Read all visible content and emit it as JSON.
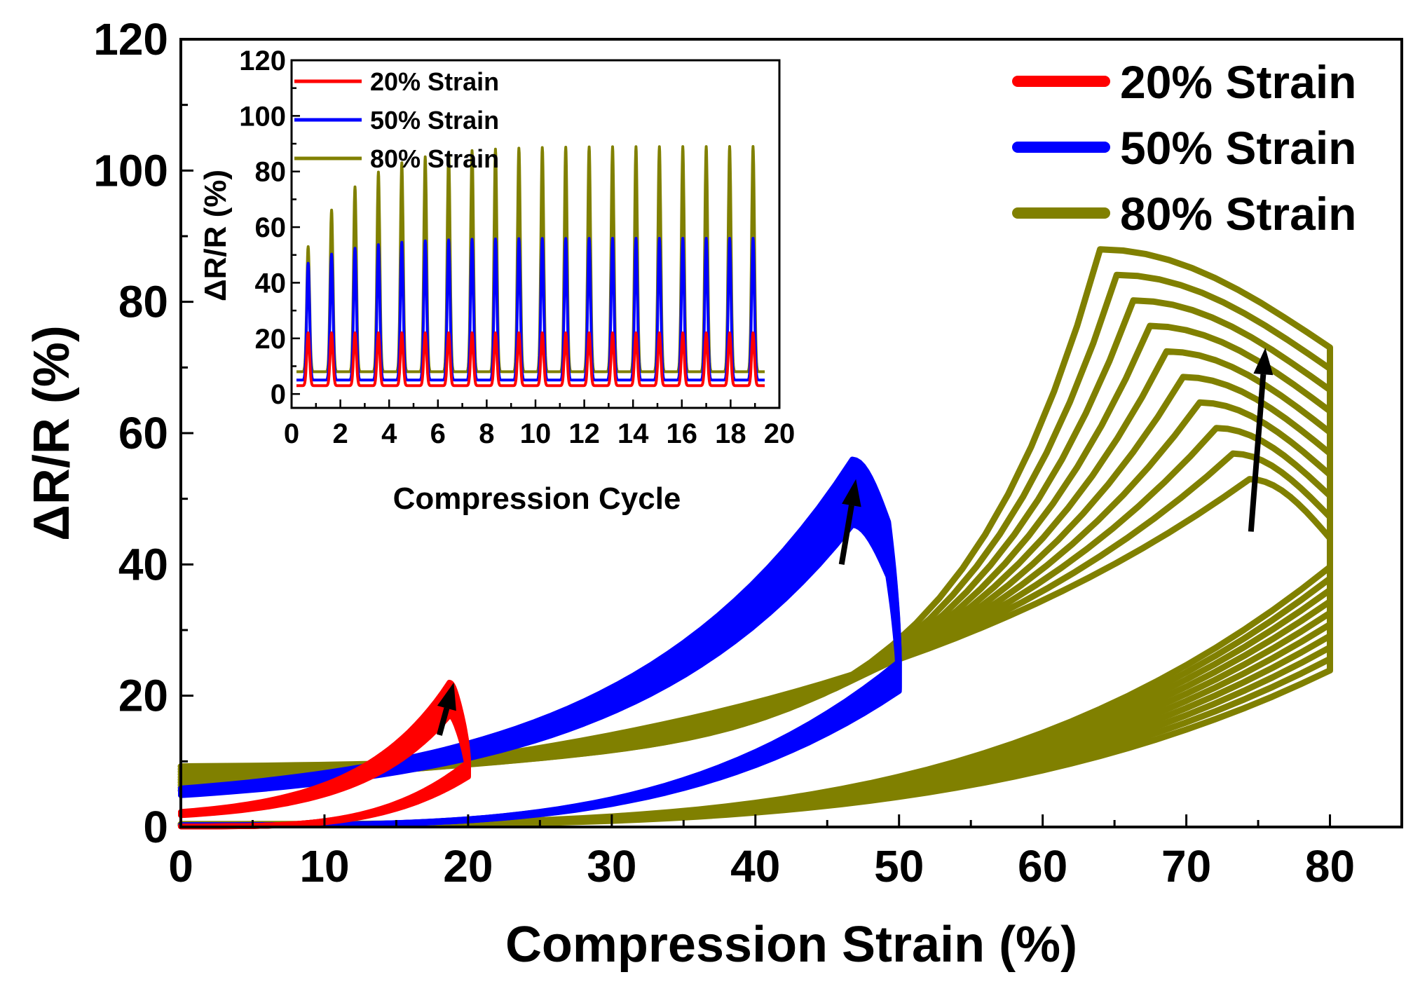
{
  "chart_data": [
    {
      "type": "line",
      "id": "main",
      "xlabel": "Compression Strain (%)",
      "ylabel": "ΔR/R (%)",
      "xlim": [
        0,
        85
      ],
      "ylim": [
        0,
        120
      ],
      "xticks": [
        0,
        10,
        20,
        30,
        40,
        50,
        60,
        70,
        80
      ],
      "yticks": [
        0,
        20,
        40,
        60,
        80,
        100,
        120
      ],
      "legend_position": "top-right",
      "legend": [
        {
          "label": "20% Strain",
          "color": "#ff0000"
        },
        {
          "label": "50% Strain",
          "color": "#0000ff"
        },
        {
          "label": "80% Strain",
          "color": "#808000"
        }
      ],
      "series": [
        {
          "name": "20% Strain",
          "color": "#ff0000",
          "max_strain": 20,
          "peak_start": 17,
          "peak_end": 22,
          "cycles": 20
        },
        {
          "name": "50% Strain",
          "color": "#0000ff",
          "max_strain": 50,
          "peak_start": 46,
          "peak_end": 56,
          "cycles": 20
        },
        {
          "name": "80% Strain",
          "color": "#808000",
          "max_strain": 80,
          "peak_start": 53,
          "peak_end": 88,
          "cycles": 10
        }
      ],
      "arrows": [
        {
          "x1": 18.0,
          "y1": 14.0,
          "x2": 19.0,
          "y2": 22.0
        },
        {
          "x1": 46.0,
          "y1": 40.0,
          "x2": 47.0,
          "y2": 53.0
        },
        {
          "x1": 74.5,
          "y1": 45.0,
          "x2": 75.5,
          "y2": 73.0
        }
      ]
    },
    {
      "type": "line",
      "id": "inset",
      "xlabel": "Compression Cycle",
      "ylabel": "ΔR/R (%)",
      "xlim": [
        0,
        20
      ],
      "ylim": [
        -5,
        120
      ],
      "xticks": [
        0,
        2,
        4,
        6,
        8,
        10,
        12,
        14,
        16,
        18,
        20
      ],
      "yticks": [
        0,
        20,
        40,
        60,
        80,
        100,
        120
      ],
      "legend_position": "top-left",
      "cycles": 20,
      "series": [
        {
          "name": "20% Strain",
          "color": "#ff0000",
          "baseline": 3,
          "peak_first": 22,
          "peak_last": 22
        },
        {
          "name": "50% Strain",
          "color": "#0000ff",
          "baseline": 5,
          "peak_first": 47,
          "peak_last": 56
        },
        {
          "name": "80% Strain",
          "color": "#808000",
          "baseline": 8,
          "peak_first": 53,
          "peak_last": 89
        }
      ]
    }
  ]
}
